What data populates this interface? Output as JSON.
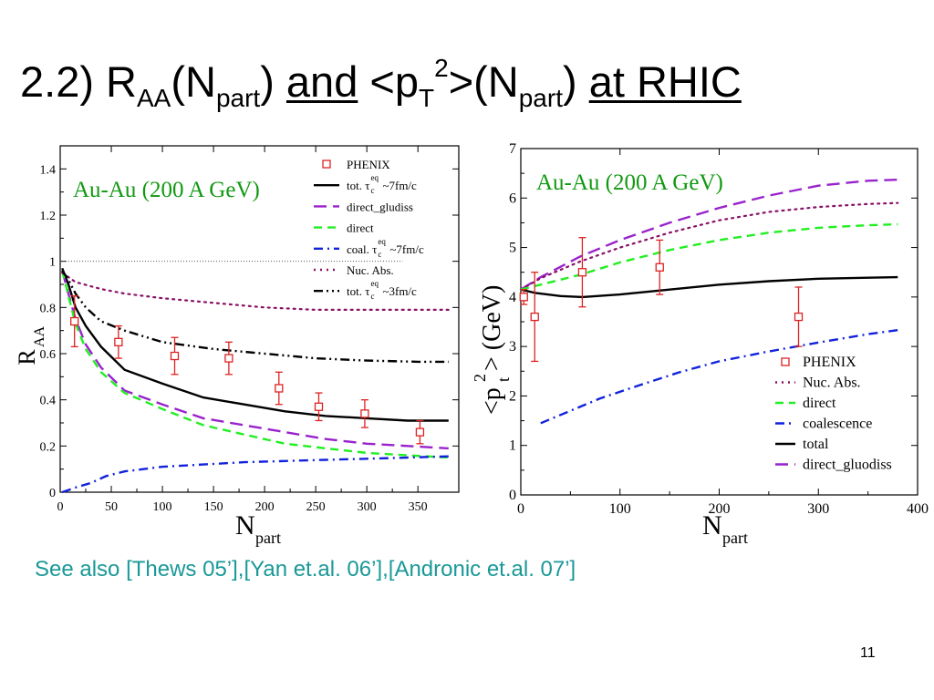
{
  "slide": {
    "title": {
      "prefix": "2.2) R",
      "raa_sub": "AA",
      "paren1": "(N",
      "part_sub_1": "part",
      "close1": ")",
      "and": "and",
      "pt_open": " <p",
      "t_sub": "T",
      "sq_sup": "2",
      "paren2": ">(N",
      "part_sub_2": "part",
      "close2": ")",
      "at_rhic": "at RHIC"
    },
    "see_also": "See also [Thews 05’],[Yan et.al. 06’],[Andronic et.al. 07’]",
    "page_number": "11"
  },
  "colors": {
    "phenix": "#dd2222",
    "total": "#000000",
    "gluodiss": "#9922cc",
    "direct": "#22ee22",
    "coal": "#1122dd",
    "nucabs": "#881166",
    "tot3": "#000000",
    "annotation": "#119911",
    "see_also": "#1a9898"
  },
  "chart_data": [
    {
      "type": "line",
      "annotation": "Au-Au (200 A GeV)",
      "xlabel_main": "N",
      "xlabel_sub": "part",
      "ylabel_main": "R",
      "ylabel_sub": "AA",
      "xlim": [
        0,
        390
      ],
      "ylim": [
        0,
        1.5
      ],
      "x_ticks": [
        "0",
        "50",
        "100",
        "150",
        "200",
        "250",
        "300",
        "350"
      ],
      "y_ticks": [
        "0",
        "0.2",
        "0.4",
        "0.6",
        "0.8",
        "1",
        "1.2",
        "1.4"
      ],
      "x_tick_values": [
        0,
        50,
        100,
        150,
        200,
        250,
        300,
        350
      ],
      "y_tick_values": [
        0,
        0.2,
        0.4,
        0.6,
        0.8,
        1.0,
        1.2,
        1.4
      ],
      "reference_line": 1.0,
      "legend_position": "top-right",
      "legend": [
        {
          "key": "phenix",
          "label": "PHENIX"
        },
        {
          "key": "total",
          "label": "tot. τ",
          "sub": "c",
          "sup": "eq",
          "suffix": "~7fm/c"
        },
        {
          "key": "gluodiss",
          "label": "direct_gludiss"
        },
        {
          "key": "direct",
          "label": "direct"
        },
        {
          "key": "coal",
          "label": "coal. τ",
          "sub": "c",
          "sup": "eq",
          "suffix": "~7fm/c"
        },
        {
          "key": "nucabs",
          "label": "Nuc. Abs."
        },
        {
          "key": "tot3",
          "label": "tot. τ",
          "sub": "c",
          "sup": "eq",
          "suffix": "~3fm/c"
        }
      ],
      "series": [
        {
          "key": "total",
          "style": "solid",
          "x": [
            2,
            8,
            15,
            25,
            40,
            63,
            100,
            140,
            180,
            220,
            260,
            300,
            340,
            380
          ],
          "y": [
            0.97,
            0.9,
            0.8,
            0.72,
            0.63,
            0.53,
            0.47,
            0.41,
            0.38,
            0.35,
            0.33,
            0.32,
            0.31,
            0.31
          ]
        },
        {
          "key": "gluodiss",
          "style": "longdash",
          "x": [
            2,
            8,
            15,
            25,
            40,
            63,
            100,
            140,
            180,
            220,
            260,
            300,
            340,
            380
          ],
          "y": [
            0.96,
            0.86,
            0.75,
            0.64,
            0.54,
            0.44,
            0.38,
            0.32,
            0.29,
            0.26,
            0.23,
            0.21,
            0.2,
            0.19
          ]
        },
        {
          "key": "direct",
          "style": "dash",
          "x": [
            2,
            8,
            15,
            25,
            40,
            63,
            100,
            140,
            180,
            220,
            260,
            300,
            340,
            380
          ],
          "y": [
            0.96,
            0.85,
            0.73,
            0.62,
            0.52,
            0.43,
            0.36,
            0.29,
            0.25,
            0.21,
            0.19,
            0.17,
            0.16,
            0.15
          ]
        },
        {
          "key": "coal",
          "style": "dashdot",
          "x": [
            2,
            15,
            30,
            45,
            63,
            100,
            140,
            180,
            220,
            260,
            300,
            340,
            380
          ],
          "y": [
            0.0,
            0.02,
            0.04,
            0.07,
            0.09,
            0.11,
            0.12,
            0.13,
            0.135,
            0.14,
            0.145,
            0.15,
            0.155
          ]
        },
        {
          "key": "nucabs",
          "style": "dot",
          "x": [
            2,
            15,
            40,
            63,
            100,
            150,
            200,
            250,
            300,
            350,
            380
          ],
          "y": [
            0.95,
            0.91,
            0.88,
            0.86,
            0.84,
            0.82,
            0.8,
            0.79,
            0.79,
            0.79,
            0.79
          ]
        },
        {
          "key": "tot3",
          "style": "dashdotdot",
          "x": [
            2,
            8,
            15,
            25,
            40,
            63,
            100,
            150,
            200,
            250,
            300,
            350,
            380
          ],
          "y": [
            0.96,
            0.92,
            0.86,
            0.8,
            0.74,
            0.7,
            0.65,
            0.62,
            0.6,
            0.58,
            0.57,
            0.565,
            0.565
          ]
        }
      ],
      "phenix": {
        "x": [
          14,
          57,
          112,
          165,
          214,
          253,
          298,
          352
        ],
        "y": [
          0.74,
          0.65,
          0.59,
          0.58,
          0.45,
          0.37,
          0.34,
          0.26
        ],
        "err": [
          0.11,
          0.07,
          0.08,
          0.07,
          0.07,
          0.06,
          0.06,
          0.05
        ]
      }
    },
    {
      "type": "line",
      "annotation": "Au-Au (200 A GeV)",
      "xlabel_main": "N",
      "xlabel_sub": "part",
      "ylabel_left": "<p",
      "ylabel_t": "t",
      "ylabel_sq": "2",
      "ylabel_right": "> (GeV)",
      "xlim": [
        0,
        400
      ],
      "ylim": [
        0,
        7
      ],
      "x_ticks": [
        "0",
        "100",
        "200",
        "300",
        "400"
      ],
      "y_ticks": [
        "0",
        "1",
        "2",
        "3",
        "4",
        "5",
        "6",
        "7"
      ],
      "x_tick_values": [
        0,
        100,
        200,
        300,
        400
      ],
      "y_tick_values": [
        0,
        1,
        2,
        3,
        4,
        5,
        6,
        7
      ],
      "legend_position": "bottom-right",
      "legend": [
        {
          "key": "phenix",
          "label": "PHENIX"
        },
        {
          "key": "nucabs",
          "label": "Nuc. Abs."
        },
        {
          "key": "direct",
          "label": "direct"
        },
        {
          "key": "coal",
          "label": "coalescence"
        },
        {
          "key": "total",
          "label": "total"
        },
        {
          "key": "gluodiss",
          "label": "direct_gluodiss"
        }
      ],
      "series": [
        {
          "key": "total",
          "style": "solid",
          "x": [
            0,
            15,
            40,
            62,
            100,
            150,
            200,
            250,
            300,
            350,
            380
          ],
          "y": [
            4.15,
            4.08,
            4.02,
            4.0,
            4.05,
            4.15,
            4.25,
            4.32,
            4.37,
            4.39,
            4.4
          ]
        },
        {
          "key": "gluodiss",
          "style": "longdash",
          "x": [
            0,
            20,
            60,
            100,
            150,
            200,
            250,
            300,
            350,
            380
          ],
          "y": [
            4.15,
            4.4,
            4.82,
            5.15,
            5.5,
            5.8,
            6.05,
            6.25,
            6.35,
            6.37
          ]
        },
        {
          "key": "nucabs",
          "style": "dot",
          "x": [
            0,
            20,
            60,
            100,
            150,
            200,
            250,
            300,
            350,
            380
          ],
          "y": [
            4.15,
            4.38,
            4.72,
            5.0,
            5.3,
            5.55,
            5.72,
            5.82,
            5.88,
            5.9
          ]
        },
        {
          "key": "direct",
          "style": "dash",
          "x": [
            0,
            20,
            60,
            100,
            150,
            200,
            250,
            300,
            350,
            380
          ],
          "y": [
            4.15,
            4.25,
            4.45,
            4.7,
            4.95,
            5.15,
            5.3,
            5.4,
            5.45,
            5.47
          ]
        },
        {
          "key": "coal",
          "style": "dashdot",
          "x": [
            20,
            50,
            80,
            120,
            160,
            200,
            250,
            300,
            350,
            380
          ],
          "y": [
            1.45,
            1.7,
            1.95,
            2.22,
            2.48,
            2.7,
            2.9,
            3.08,
            3.25,
            3.33
          ]
        },
        {
          "key": "tot_pts",
          "style": "none",
          "x": [],
          "y": []
        }
      ],
      "phenix": {
        "x": [
          3,
          14,
          62,
          140,
          280
        ],
        "y": [
          4.0,
          3.6,
          4.5,
          4.6,
          3.6
        ],
        "err": [
          0.15,
          0.9,
          0.7,
          0.55,
          0.6
        ]
      }
    }
  ]
}
